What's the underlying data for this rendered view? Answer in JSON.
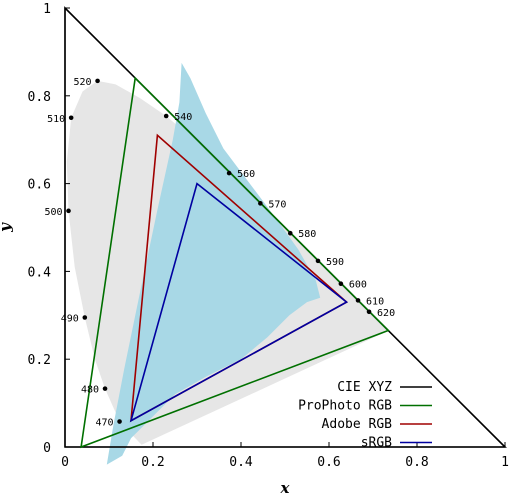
{
  "chart_data": {
    "type": "scatter",
    "title": "",
    "xlabel": "x",
    "ylabel": "y",
    "xlim": [
      0,
      1
    ],
    "ylim": [
      0,
      1
    ],
    "x_ticks": [
      "0",
      "0.2",
      "0.4",
      "0.6",
      "0.8",
      "1"
    ],
    "y_ticks": [
      "0",
      "0.2",
      "0.4",
      "0.6",
      "0.8",
      "1"
    ],
    "grid": false,
    "legend_position": "bottom-right",
    "spectral_locus_points": [
      {
        "label": "470",
        "x": 0.124,
        "y": 0.058
      },
      {
        "label": "480",
        "x": 0.091,
        "y": 0.133
      },
      {
        "label": "490",
        "x": 0.045,
        "y": 0.295
      },
      {
        "label": "500",
        "x": 0.008,
        "y": 0.538
      },
      {
        "label": "510",
        "x": 0.014,
        "y": 0.75
      },
      {
        "label": "520",
        "x": 0.074,
        "y": 0.834
      },
      {
        "label": "540",
        "x": 0.23,
        "y": 0.754
      },
      {
        "label": "560",
        "x": 0.373,
        "y": 0.624
      },
      {
        "label": "570",
        "x": 0.444,
        "y": 0.555
      },
      {
        "label": "580",
        "x": 0.512,
        "y": 0.487
      },
      {
        "label": "590",
        "x": 0.575,
        "y": 0.424
      },
      {
        "label": "600",
        "x": 0.627,
        "y": 0.372
      },
      {
        "label": "610",
        "x": 0.666,
        "y": 0.334
      },
      {
        "label": "620",
        "x": 0.691,
        "y": 0.308
      }
    ],
    "series": [
      {
        "name": "CIE XYZ",
        "color": "#000000",
        "points": [
          [
            0,
            1
          ],
          [
            1,
            0
          ],
          [
            0,
            0
          ]
        ]
      },
      {
        "name": "ProPhoto RGB",
        "color": "#007000",
        "points": [
          [
            0.7347,
            0.2653
          ],
          [
            0.1596,
            0.8404
          ],
          [
            0.0366,
            0.0001
          ]
        ]
      },
      {
        "name": "Adobe RGB",
        "color": "#a00000",
        "points": [
          [
            0.64,
            0.33
          ],
          [
            0.21,
            0.71
          ],
          [
            0.15,
            0.06
          ]
        ]
      },
      {
        "name": "sRGB",
        "color": "#0000a0",
        "points": [
          [
            0.64,
            0.33
          ],
          [
            0.3,
            0.6
          ],
          [
            0.15,
            0.06
          ]
        ]
      }
    ],
    "area_colors": {
      "locus_fill": "#e6e6e6",
      "blue_region": "#a8d8e6"
    }
  }
}
